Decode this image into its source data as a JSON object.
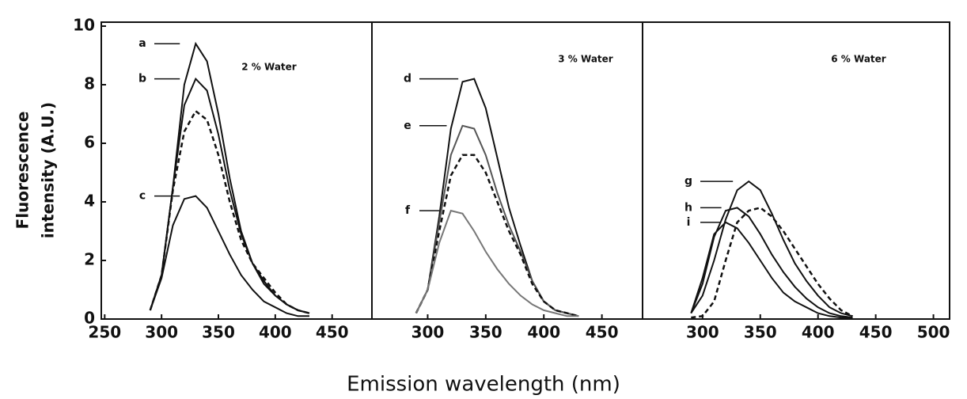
{
  "chart_data": [
    {
      "type": "line",
      "title": "2 % Water",
      "ylabel": [
        "Fluorescence",
        "intensity (A.U.)"
      ],
      "xlim": [
        247,
        485
      ],
      "xticks": [
        250,
        300,
        350,
        400,
        450
      ],
      "ylim": [
        0,
        10
      ],
      "yticks": [
        0,
        2,
        4,
        6,
        8,
        10
      ],
      "x": [
        290,
        300,
        310,
        320,
        330,
        340,
        350,
        360,
        370,
        380,
        390,
        400,
        410,
        420,
        430
      ],
      "series": [
        {
          "name": "a",
          "color": "#111111",
          "style": "solid",
          "values": [
            0.3,
            1.5,
            4.5,
            8.0,
            9.4,
            8.8,
            7.0,
            4.8,
            3.0,
            1.9,
            1.2,
            0.8,
            0.5,
            0.3,
            0.2
          ]
        },
        {
          "name": "b",
          "color": "#111111",
          "style": "solid",
          "values": [
            0.3,
            1.5,
            4.5,
            7.3,
            8.2,
            7.8,
            6.3,
            4.4,
            2.9,
            1.9,
            1.3,
            0.8,
            0.5,
            0.3,
            0.2
          ]
        },
        {
          "color": "#111111",
          "style": "dashed",
          "values": [
            0.3,
            1.5,
            4.4,
            6.4,
            7.1,
            6.8,
            5.6,
            4.0,
            2.7,
            1.9,
            1.4,
            0.9,
            0.5,
            0.3,
            0.2
          ]
        },
        {
          "name": "c",
          "color": "#111111",
          "style": "solid",
          "values": [
            0.3,
            1.4,
            3.2,
            4.1,
            4.2,
            3.8,
            3.0,
            2.2,
            1.5,
            1.0,
            0.6,
            0.4,
            0.2,
            0.1,
            0.1
          ]
        }
      ]
    },
    {
      "type": "line",
      "title": "3 % Water",
      "xlabel": "Emission wavelength (nm)",
      "xlim": [
        252,
        485
      ],
      "xticks": [
        300,
        350,
        400,
        450
      ],
      "ylim": [
        0,
        10
      ],
      "x": [
        290,
        300,
        310,
        320,
        330,
        340,
        350,
        360,
        370,
        380,
        390,
        400,
        410,
        420,
        430
      ],
      "series": [
        {
          "name": "d",
          "color": "#111111",
          "style": "solid",
          "values": [
            0.2,
            1.0,
            3.5,
            6.5,
            8.1,
            8.2,
            7.2,
            5.5,
            3.8,
            2.5,
            1.3,
            0.6,
            0.3,
            0.2,
            0.1
          ]
        },
        {
          "name": "e",
          "color": "#555555",
          "style": "solid",
          "values": [
            0.2,
            1.0,
            3.3,
            5.6,
            6.6,
            6.5,
            5.6,
            4.3,
            3.2,
            2.3,
            1.3,
            0.6,
            0.3,
            0.2,
            0.1
          ]
        },
        {
          "color": "#111111",
          "style": "dashed",
          "values": [
            0.2,
            1.0,
            3.0,
            4.9,
            5.6,
            5.6,
            5.0,
            4.0,
            3.0,
            2.2,
            1.2,
            0.6,
            0.3,
            0.2,
            0.1
          ]
        },
        {
          "name": "f",
          "color": "#777777",
          "style": "solid",
          "values": [
            0.2,
            1.0,
            2.6,
            3.7,
            3.6,
            3.0,
            2.3,
            1.7,
            1.2,
            0.8,
            0.5,
            0.3,
            0.2,
            0.1,
            0.1
          ]
        }
      ]
    },
    {
      "type": "line",
      "title": "6 % Water",
      "xlim": [
        248,
        514
      ],
      "xticks": [
        300,
        350,
        400,
        450,
        500
      ],
      "ylim": [
        0,
        10
      ],
      "x": [
        290,
        300,
        310,
        320,
        330,
        340,
        350,
        360,
        370,
        380,
        390,
        400,
        410,
        420,
        430
      ],
      "series": [
        {
          "name": "g",
          "color": "#111111",
          "style": "solid",
          "values": [
            0.2,
            0.8,
            2.0,
            3.4,
            4.4,
            4.7,
            4.4,
            3.6,
            2.7,
            1.9,
            1.3,
            0.8,
            0.4,
            0.2,
            0.1
          ]
        },
        {
          "color": "#111111",
          "style": "dashed",
          "values": [
            0.05,
            0.1,
            0.6,
            2.0,
            3.3,
            3.7,
            3.8,
            3.5,
            3.0,
            2.4,
            1.8,
            1.2,
            0.7,
            0.3,
            0.1
          ]
        },
        {
          "name": "h",
          "color": "#111111",
          "style": "solid",
          "values": [
            0.2,
            1.2,
            2.8,
            3.7,
            3.8,
            3.5,
            2.9,
            2.2,
            1.6,
            1.1,
            0.7,
            0.4,
            0.2,
            0.1,
            0.05
          ]
        },
        {
          "name": "i",
          "color": "#111111",
          "style": "solid",
          "values": [
            0.2,
            1.4,
            2.9,
            3.3,
            3.1,
            2.6,
            2.0,
            1.4,
            0.9,
            0.6,
            0.4,
            0.2,
            0.1,
            0.05,
            0.02
          ]
        }
      ]
    }
  ]
}
